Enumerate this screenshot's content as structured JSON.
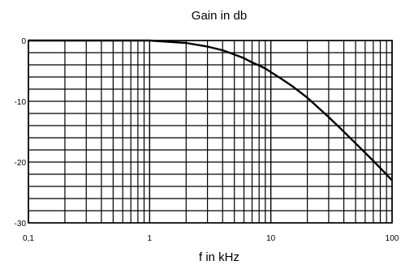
{
  "chart_data": {
    "type": "line",
    "title": "Gain in db",
    "xlabel": "f in kHz",
    "ylabel": "",
    "x_scale": "log",
    "xlim": [
      0.1,
      100
    ],
    "ylim": [
      -30,
      0
    ],
    "grid": true,
    "x_ticks": [
      {
        "value": 0.1,
        "label": "0,1"
      },
      {
        "value": 1,
        "label": "1"
      },
      {
        "value": 10,
        "label": "10"
      },
      {
        "value": 100,
        "label": "100"
      }
    ],
    "y_ticks": [
      {
        "value": 0,
        "label": "0"
      },
      {
        "value": -10,
        "label": "-10"
      },
      {
        "value": -20,
        "label": "-20"
      },
      {
        "value": -30,
        "label": "-30"
      }
    ],
    "series": [
      {
        "x": [
          0.1,
          0.5,
          1,
          2,
          3,
          4,
          5,
          6,
          7,
          8,
          9,
          10,
          12,
          15,
          20,
          30,
          40,
          50,
          70,
          100
        ],
        "y": [
          0,
          0,
          0,
          -0.4,
          -1.0,
          -1.6,
          -2.3,
          -2.9,
          -3.6,
          -4.1,
          -4.6,
          -5.2,
          -6.2,
          -7.5,
          -9.4,
          -12.6,
          -15.0,
          -16.9,
          -19.8,
          -23.0
        ]
      }
    ],
    "colors": {
      "line": "#000000",
      "grid": "#000000"
    }
  }
}
